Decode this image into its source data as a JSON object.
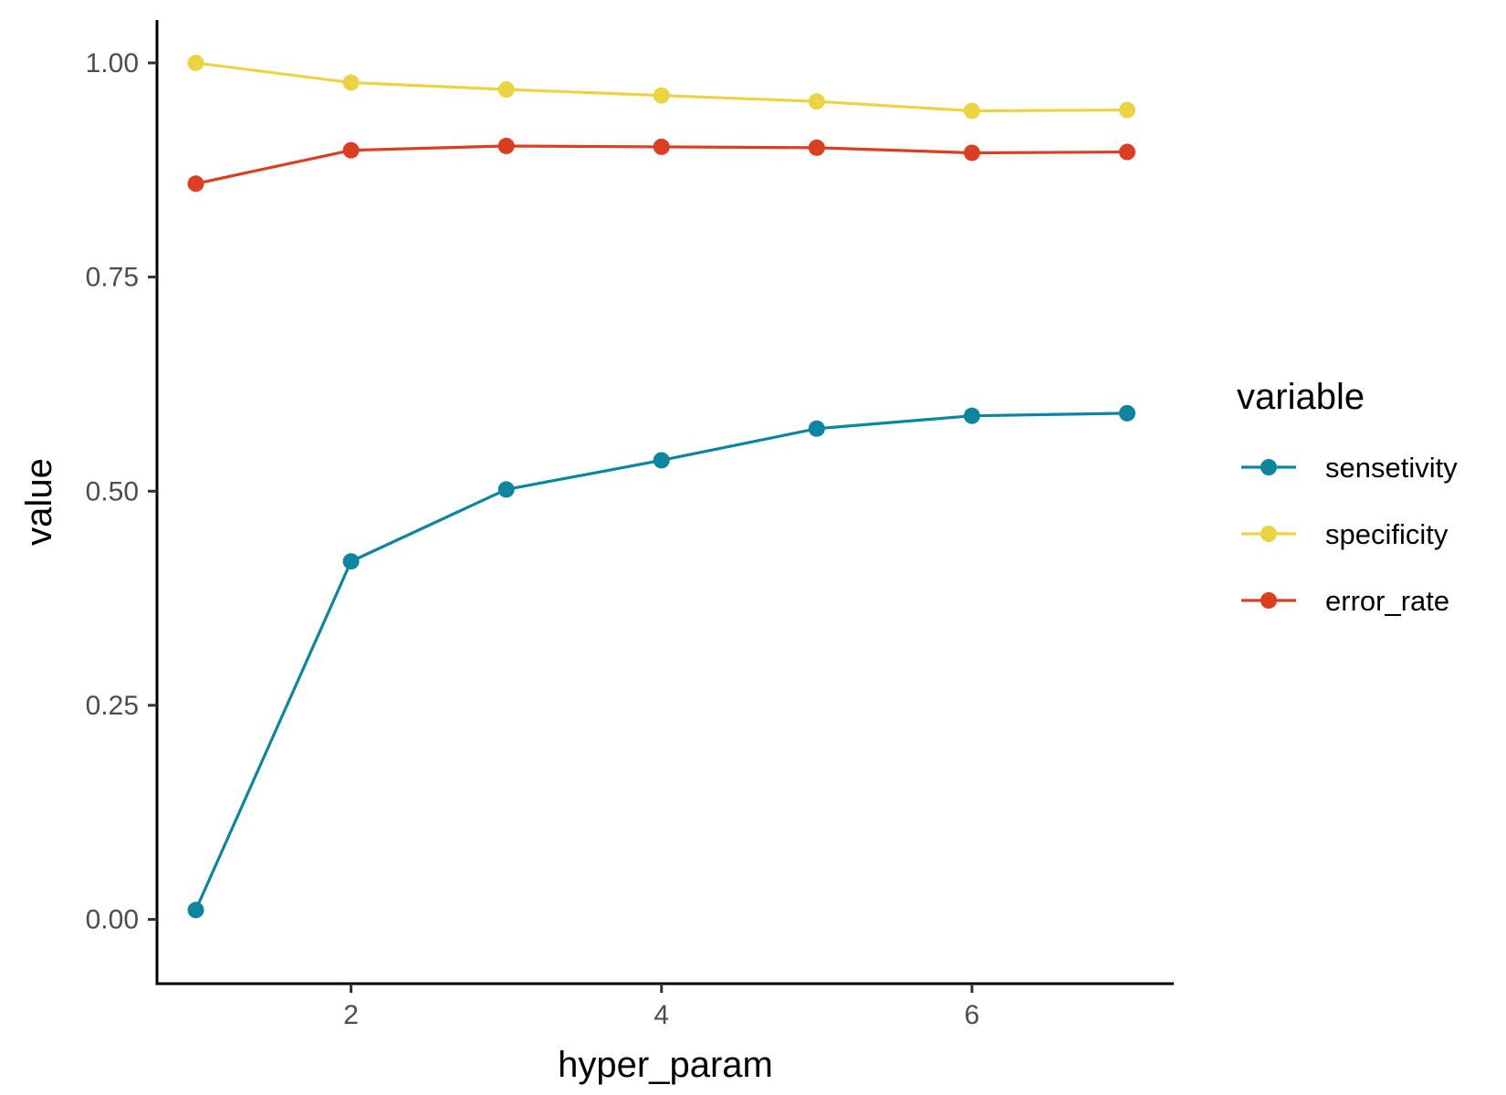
{
  "chart_data": {
    "type": "line",
    "xlabel": "hyper_param",
    "ylabel": "value",
    "x": [
      1,
      2,
      3,
      4,
      5,
      6,
      7
    ],
    "xlim": [
      0.75,
      7.3
    ],
    "ylim": [
      -0.075,
      1.05
    ],
    "x_ticks": [
      2,
      4,
      6
    ],
    "x_tick_labels": [
      "2",
      "4",
      "6"
    ],
    "y_ticks": [
      0,
      0.25,
      0.5,
      0.75,
      1.0
    ],
    "y_tick_labels": [
      "0.00",
      "0.25",
      "0.50",
      "0.75",
      "1.00"
    ],
    "grid": false,
    "legend": {
      "title": "variable",
      "placement": "right"
    },
    "series": [
      {
        "name": "sensetivity",
        "color": "#0C86A0",
        "values": [
          0.011,
          0.418,
          0.502,
          0.536,
          0.573,
          0.588,
          0.591
        ]
      },
      {
        "name": "specificity",
        "color": "#EBD444",
        "values": [
          1.0,
          0.977,
          0.969,
          0.962,
          0.955,
          0.944,
          0.945
        ]
      },
      {
        "name": "error_rate",
        "color": "#DB3E20",
        "values": [
          0.859,
          0.898,
          0.903,
          0.902,
          0.901,
          0.895,
          0.896
        ]
      }
    ]
  }
}
